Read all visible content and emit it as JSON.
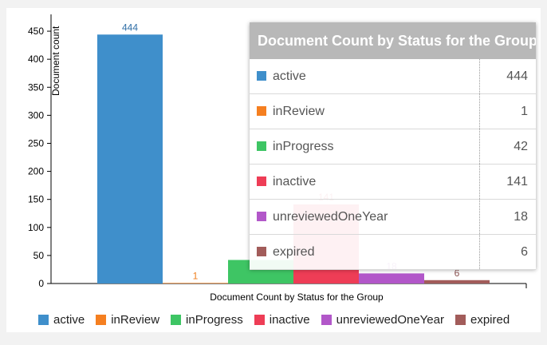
{
  "chart_data": {
    "type": "bar",
    "title": "Document Count by Status for the Group",
    "xlabel": "Document Count by Status for the Group",
    "ylabel": "Document count",
    "ylim": [
      0,
      480
    ],
    "yticks": [
      0,
      50,
      100,
      150,
      200,
      250,
      300,
      350,
      400,
      450
    ],
    "categories": [
      "active",
      "inReview",
      "inProgress",
      "inactive",
      "unreviewedOneYear",
      "expired"
    ],
    "values": [
      444,
      1,
      42,
      141,
      18,
      6
    ],
    "data_labels": [
      "444",
      "1",
      "42",
      "141",
      "18",
      "6"
    ],
    "colors": [
      "#3f8fcb",
      "#f57f20",
      "#3ec564",
      "#ee3d56",
      "#b257c9",
      "#a25c5a"
    ],
    "label_colors": [
      "#2f6ea6",
      "#f07f1f",
      "#2e9a4b",
      "#d63a50",
      "#9b4db1",
      "#8c5452"
    ],
    "grid": false,
    "legend": "bottom"
  },
  "tooltip": {
    "title": "Document Count by Status for the Group",
    "rows": [
      {
        "name": "active",
        "value": "444"
      },
      {
        "name": "inReview",
        "value": "1"
      },
      {
        "name": "inProgress",
        "value": "42"
      },
      {
        "name": "inactive",
        "value": "141"
      },
      {
        "name": "unreviewedOneYear",
        "value": "18"
      },
      {
        "name": "expired",
        "value": "6"
      }
    ]
  }
}
